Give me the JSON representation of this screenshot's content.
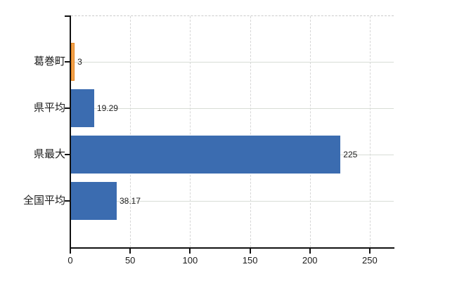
{
  "chart_data": {
    "type": "bar",
    "orientation": "horizontal",
    "title": "",
    "categories": [
      "葛巻町",
      "県平均",
      "県最大",
      "全国平均"
    ],
    "values": [
      3,
      19.29,
      225,
      38.17
    ],
    "value_labels": [
      "3",
      "19.29",
      "225",
      "38.17"
    ],
    "bar_fill_colors": [
      "#F2A24C",
      "#3B6CB0",
      "#3B6CB0",
      "#3B6CB0"
    ],
    "bar_border_colors": [
      "#E2821E",
      "#3B6CB0",
      "#3B6CB0",
      "#3B6CB0"
    ],
    "xtick_labels": [
      "0",
      "50",
      "100",
      "150",
      "200",
      "250"
    ],
    "xtick_values": [
      0,
      50,
      100,
      150,
      200,
      250
    ],
    "xlim": [
      0,
      270
    ],
    "grid": true,
    "legend": "none",
    "axis_color": "#111111",
    "gridline_color_h": "#d8ddd6",
    "gridline_color_v": "#d6d6d6",
    "plot_top_border_color": "#cbcbcb",
    "text_color": "#1c1c1c",
    "background": "#ffffff"
  }
}
